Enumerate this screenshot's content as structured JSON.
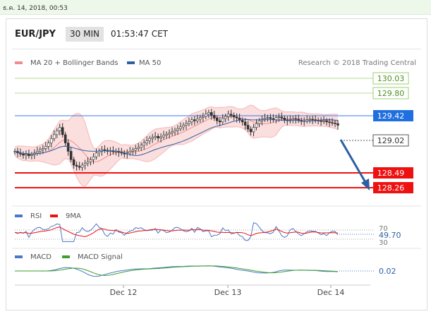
{
  "timestamp": "ธ.ค. 14, 2018, 00:53",
  "header": {
    "pair": "EUR/JPY",
    "timeframe": "30 MIN",
    "time": "01:53:47 CET"
  },
  "legend": {
    "bb": "MA 20 + Bollinger Bands",
    "ma50": "MA 50",
    "research": "Research © 2018 Trading Central"
  },
  "colors": {
    "bb_fill": "#f9d5d5",
    "bb_line": "#f28b8b",
    "ma50": "#2d5fa3",
    "resistance": "#9ccf73",
    "pivot_blue": "#1f6fe0",
    "support": "#ee1111",
    "arrow": "#2d5fa3",
    "rsi": "#4a78c8",
    "rsi_ma": "#ee1111",
    "macd": "#4a78c8",
    "macd_signal": "#3f9e2e"
  },
  "chart_data": [
    {
      "type": "line",
      "title": "",
      "ylim": [
        127.6,
        130.3
      ],
      "x_ticks": [
        "Dec 12",
        "Dec 13",
        "Dec 14"
      ],
      "series": [
        {
          "name": "MA 20 + Bollinger Bands",
          "kind": "candlestick",
          "x": [
            0,
            2,
            4,
            6,
            8,
            10,
            12,
            14,
            16,
            18,
            20,
            22,
            24,
            26,
            28,
            30,
            32,
            34,
            36,
            38,
            40,
            42,
            44,
            46,
            48,
            50,
            52,
            54,
            56,
            58,
            60,
            62,
            64,
            66,
            68,
            70,
            72,
            74,
            76,
            78,
            80,
            82,
            84,
            86,
            88,
            90,
            92,
            94,
            96,
            98,
            100,
            102,
            104,
            106,
            108,
            110,
            112,
            114,
            116,
            118,
            120,
            122,
            124,
            126,
            128,
            130,
            132,
            134,
            136,
            138,
            140,
            142,
            144,
            146,
            148,
            150,
            152,
            154,
            156,
            158,
            160,
            162,
            164,
            166,
            168,
            170,
            172,
            174,
            176,
            178,
            180,
            182,
            184,
            186,
            188,
            190,
            192,
            194,
            196,
            198,
            200,
            202,
            204,
            206,
            208,
            210,
            212,
            214,
            216,
            218,
            220,
            222,
            224,
            226,
            228,
            230
          ],
          "close": [
            128.55,
            128.52,
            128.5,
            128.48,
            128.5,
            128.47,
            128.49,
            128.52,
            128.55,
            128.58,
            128.6,
            128.64,
            128.7,
            128.78,
            128.85,
            128.92,
            128.98,
            128.85,
            128.7,
            128.55,
            128.4,
            128.3,
            128.28,
            128.26,
            128.3,
            128.33,
            128.36,
            128.4,
            128.45,
            128.52,
            128.55,
            128.58,
            128.57,
            128.55,
            128.56,
            128.54,
            128.55,
            128.53,
            128.52,
            128.5,
            128.52,
            128.55,
            128.57,
            128.6,
            128.62,
            128.66,
            128.7,
            128.74,
            128.78,
            128.8,
            128.82,
            128.79,
            128.81,
            128.84,
            128.86,
            128.88,
            128.9,
            128.93,
            128.96,
            128.99,
            129.02,
            129.05,
            129.08,
            129.12,
            129.1,
            129.13,
            129.16,
            129.18,
            129.22,
            129.25,
            129.2,
            129.15,
            129.1,
            129.08,
            129.14,
            129.18,
            129.22,
            129.2,
            129.17,
            129.15,
            129.11,
            129.08,
            129.02,
            128.95,
            128.9,
            128.98,
            129.05,
            129.1,
            129.13,
            129.15,
            129.16,
            129.14,
            129.12,
            129.16,
            129.17,
            129.15,
            129.12,
            129.1,
            129.12,
            129.14,
            129.13,
            129.11,
            129.09,
            129.1,
            129.12,
            129.13,
            129.12,
            129.11,
            129.1,
            129.09,
            129.1,
            129.08,
            129.07,
            129.06,
            129.05,
            129.02
          ]
        },
        {
          "name": "MA 50",
          "x": [
            0,
            230
          ],
          "y": [
            128.55,
            129.02
          ]
        }
      ],
      "levels": [
        {
          "label": "130.03",
          "value": 130.03,
          "type": "resistance"
        },
        {
          "label": "129.80",
          "value": 129.8,
          "type": "resistance"
        },
        {
          "label": "129.42",
          "value": 129.42,
          "type": "pivot"
        },
        {
          "label": "129.02",
          "value": 129.02,
          "type": "last"
        },
        {
          "label": "128.49",
          "value": 128.49,
          "type": "support"
        },
        {
          "label": "128.26",
          "value": 128.26,
          "type": "support"
        }
      ],
      "legend_position": "top-left",
      "grid": false
    },
    {
      "type": "line",
      "title": "",
      "ylim": [
        20,
        85
      ],
      "series": [
        {
          "name": "RSI"
        },
        {
          "name": "9MA"
        }
      ],
      "levels": [
        {
          "label": "70",
          "value": 70
        },
        {
          "label": "49.70",
          "value": 49.7
        },
        {
          "label": "30",
          "value": 30
        }
      ]
    },
    {
      "type": "line",
      "title": "",
      "series": [
        {
          "name": "MACD"
        },
        {
          "name": "MACD Signal"
        }
      ],
      "levels": [
        {
          "label": "0.02",
          "value": 0.02
        }
      ]
    }
  ]
}
